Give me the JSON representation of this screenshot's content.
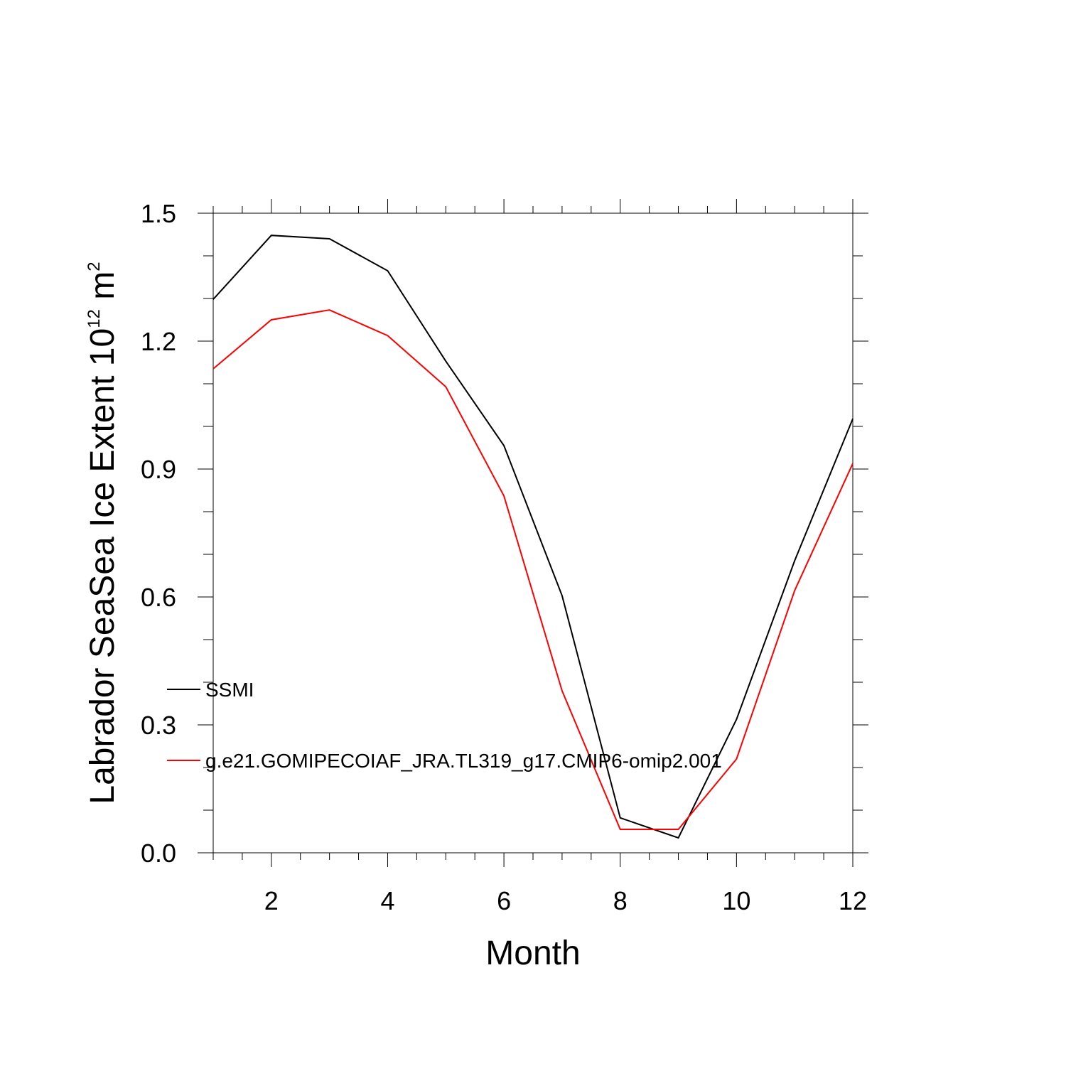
{
  "chart_data": {
    "type": "line",
    "title": "",
    "xlabel": "Month",
    "ylabel": {
      "text": "Labrador SeaSea Ice Extent 10",
      "exponent": "12",
      "unit": " m",
      "unit_exponent": "2"
    },
    "xlim": [
      1,
      12
    ],
    "ylim": [
      0,
      1.5
    ],
    "x_ticks": [
      2,
      4,
      6,
      8,
      10,
      12
    ],
    "x_tick_labels": [
      "2",
      "4",
      "6",
      "8",
      "10",
      "12"
    ],
    "y_ticks": [
      0,
      0.3,
      0.6,
      0.9,
      1.2,
      1.5
    ],
    "y_tick_labels": [
      "0.0",
      "0.3",
      "0.6",
      "0.9",
      "1.2",
      "1.5"
    ],
    "x": [
      1,
      2,
      3,
      4,
      5,
      6,
      7,
      8,
      9,
      10,
      11,
      12
    ],
    "grid": false,
    "legend_position": "left, inside plot",
    "series": [
      {
        "name": "SSMI",
        "color": "#000000",
        "values": [
          1.298,
          1.448,
          1.44,
          1.365,
          1.153,
          0.955,
          0.603,
          0.082,
          0.035,
          0.313,
          0.685,
          1.018
        ]
      },
      {
        "name": "g.e21.GOMIPECOIAF_JRA.TL319_g17.CMIP6-omip2.001",
        "color": "#ff0000",
        "values": [
          1.135,
          1.25,
          1.273,
          1.213,
          1.093,
          0.837,
          0.38,
          0.055,
          0.055,
          0.22,
          0.615,
          0.913
        ]
      }
    ]
  }
}
